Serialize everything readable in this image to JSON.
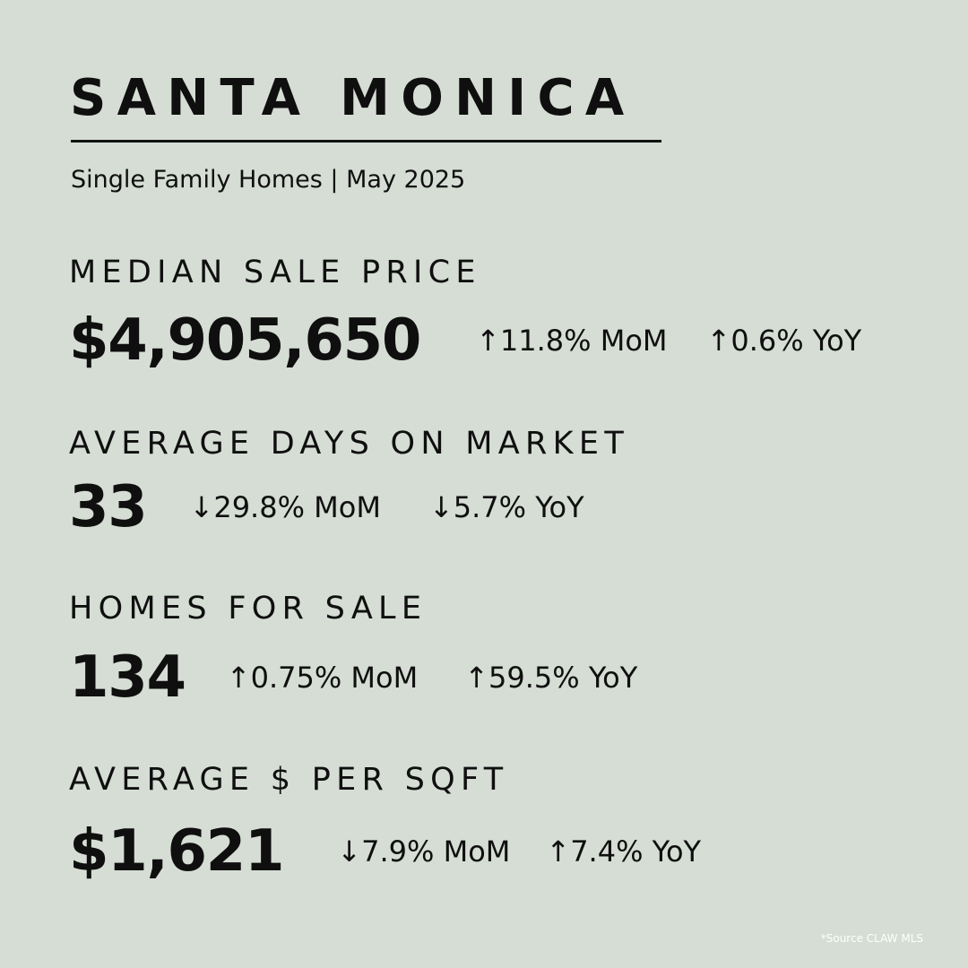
{
  "title": "SANTA MONICA",
  "subtitle": "Single Family Homes | May 2025",
  "metrics": [
    {
      "label": "MEDIAN SALE PRICE",
      "value": "$4,905,650",
      "mom": "↑11.8% MoM",
      "yoy": "↑0.6% YoY"
    },
    {
      "label": "AVERAGE DAYS ON MARKET",
      "value": "33",
      "mom": "↓29.8% MoM",
      "yoy": "↓5.7% YoY"
    },
    {
      "label": "HOMES FOR SALE",
      "value": "134",
      "mom": "↑0.75% MoM",
      "yoy": "↑59.5% YoY"
    },
    {
      "label": "AVERAGE $ PER SQFT",
      "value": "$1,621",
      "mom": "↓7.9% MoM",
      "yoy": "↑7.4% YoY"
    }
  ],
  "source": "*Source CLAW MLS",
  "colors": {
    "background": "#d5ddd4",
    "text": "#0f0f0f",
    "source_text": "#ffffff"
  }
}
